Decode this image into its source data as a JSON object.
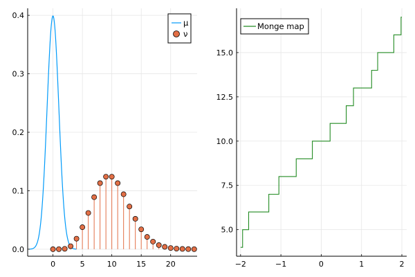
{
  "chart_data": [
    {
      "type": "line",
      "xlim": [
        -4.3,
        24.5
      ],
      "ylim": [
        -0.012,
        0.412
      ],
      "x_ticks": [
        0,
        5,
        10,
        15,
        20
      ],
      "y_ticks": [
        0.0,
        0.1,
        0.2,
        0.3,
        0.4
      ],
      "x_tick_labels": [
        "0",
        "5",
        "10",
        "15",
        "20"
      ],
      "y_tick_labels": [
        "0.0",
        "0.1",
        "0.2",
        "0.3",
        "0.4"
      ],
      "grid": true,
      "legend": "top-right",
      "series": [
        {
          "name": "μ",
          "kind": "line",
          "color": "#009af9",
          "distribution": "normal",
          "mean": 0,
          "std": 1,
          "x_range": [
            -4,
            4
          ]
        },
        {
          "name": "ν",
          "kind": "stem",
          "color": "#e26f46",
          "distribution": "binomial",
          "x": [
            0,
            1,
            2,
            3,
            4,
            5,
            6,
            7,
            8,
            9,
            10,
            11,
            12,
            13,
            14,
            15,
            16,
            17,
            18,
            19,
            20,
            21,
            22,
            23,
            24
          ],
          "y": [
            0.0,
            0.0001,
            0.0007,
            0.0051,
            0.018,
            0.0376,
            0.062,
            0.089,
            0.113,
            0.124,
            0.124,
            0.113,
            0.094,
            0.073,
            0.052,
            0.034,
            0.021,
            0.013,
            0.007,
            0.004,
            0.002,
            0.001,
            0.0005,
            0.0002,
            0.0001
          ]
        }
      ]
    },
    {
      "type": "line",
      "xlim": [
        -2.1,
        2.12
      ],
      "ylim": [
        3.5,
        17.5
      ],
      "x_ticks": [
        -2,
        -1,
        0,
        1,
        2
      ],
      "y_ticks": [
        5.0,
        7.5,
        10.0,
        12.5,
        15.0
      ],
      "x_tick_labels": [
        "−2",
        "−1",
        "0",
        "1",
        "2"
      ],
      "y_tick_labels": [
        "5.0",
        "7.5",
        "10.0",
        "12.5",
        "15.0"
      ],
      "grid": true,
      "legend": "top-left",
      "series": [
        {
          "name": "Monge map",
          "kind": "step",
          "color": "#228b22",
          "x": [
            -2.0,
            -1.95,
            -1.95,
            -1.8,
            -1.8,
            -1.5,
            -1.5,
            -1.3,
            -1.3,
            -1.05,
            -1.05,
            -0.8,
            -0.8,
            -0.62,
            -0.62,
            -0.45,
            -0.45,
            -0.22,
            -0.22,
            0.0,
            0.0,
            0.22,
            0.22,
            0.45,
            0.45,
            0.62,
            0.62,
            0.8,
            0.8,
            1.05,
            1.05,
            1.25,
            1.25,
            1.4,
            1.4,
            1.55,
            1.55,
            1.8,
            1.8,
            1.98,
            1.98,
            2.0
          ],
          "y": [
            4,
            4,
            5,
            5,
            6,
            6,
            6,
            6,
            7,
            7,
            8,
            8,
            8,
            8,
            9,
            9,
            9,
            9,
            10,
            10,
            10,
            10,
            11,
            11,
            11,
            11,
            12,
            12,
            13,
            13,
            13,
            13,
            14,
            14,
            15,
            15,
            15,
            15,
            16,
            16,
            17,
            17
          ]
        }
      ]
    }
  ]
}
